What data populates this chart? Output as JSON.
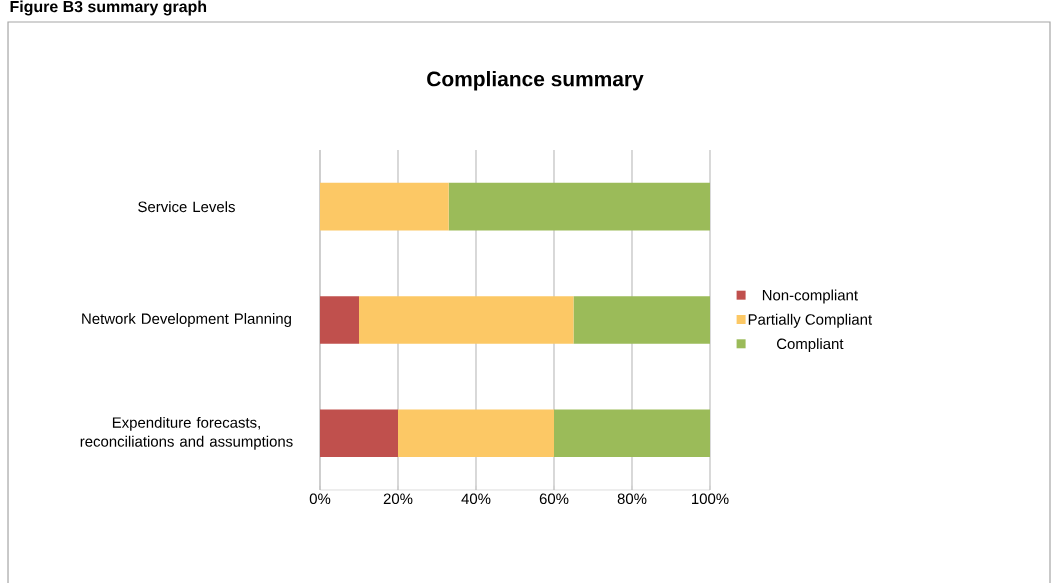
{
  "chart_data": {
    "type": "bar",
    "orientation": "horizontal",
    "stacked": true,
    "title": "Compliance summary",
    "annotations": [
      "Figure B3 summary graph"
    ],
    "categories": [
      "Service Levels",
      "Network Development Planning",
      "Expenditure forecasts, reconciliations and assumptions"
    ],
    "series": [
      {
        "name": "Non-compliant",
        "color": "#c0504d",
        "values": [
          0,
          10,
          20
        ]
      },
      {
        "name": "Partially Compliant",
        "color": "#fcc865",
        "values": [
          33,
          55,
          40
        ]
      },
      {
        "name": "Compliant",
        "color": "#9bbb59",
        "values": [
          67,
          35,
          40
        ]
      }
    ],
    "xlim": [
      0,
      100
    ],
    "xticks": [
      {
        "value": 0,
        "label": "0%"
      },
      {
        "value": 20,
        "label": "20%"
      },
      {
        "value": 40,
        "label": "40%"
      },
      {
        "value": 60,
        "label": "60%"
      },
      {
        "value": 80,
        "label": "80%"
      },
      {
        "value": 100,
        "label": "100%"
      }
    ],
    "grid": "x",
    "legend": "right"
  }
}
